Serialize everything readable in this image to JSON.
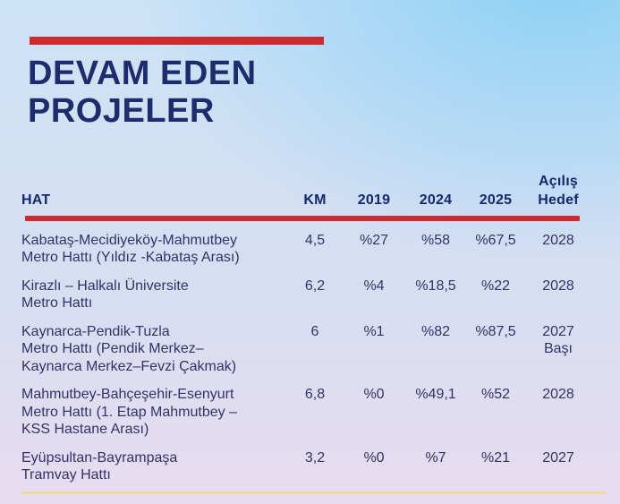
{
  "title": {
    "line1": "DEVAM EDEN",
    "line2": "PROJELER"
  },
  "colors": {
    "accent_red": "#ce2b31",
    "title_navy": "#1d2d6b",
    "header_navy": "#16286d",
    "body_text": "#333268",
    "gold_line": "#edd9a1",
    "bg_top_blue": "#aeddf6",
    "bg_bottom_lavender": "#e8dcf0"
  },
  "table": {
    "headers": {
      "hat": "HAT",
      "km": "KM",
      "y2019": "2019",
      "y2024": "2024",
      "y2025": "2025",
      "acilis_hedef_line1": "Açılış",
      "acilis_hedef_line2": "Hedef"
    },
    "rows": [
      {
        "name_lines": [
          "Kabataş-Mecidiyeköy-Mahmutbey",
          "Metro Hattı (Yıldız -Kabataş Arası)"
        ],
        "km": "4,5",
        "p2019": "%27",
        "p2024": "%58",
        "p2025": "%67,5",
        "hedef_lines": [
          "2028"
        ]
      },
      {
        "name_lines": [
          "Kirazlı – Halkalı Üniversite",
          "Metro Hattı"
        ],
        "km": "6,2",
        "p2019": "%4",
        "p2024": "%18,5",
        "p2025": "%22",
        "hedef_lines": [
          "2028"
        ]
      },
      {
        "name_lines": [
          "Kaynarca-Pendik-Tuzla",
          "Metro Hattı (Pendik Merkez–",
          "Kaynarca Merkez–Fevzi Çakmak)"
        ],
        "km": "6",
        "p2019": "%1",
        "p2024": "%82",
        "p2025": "%87,5",
        "hedef_lines": [
          "2027",
          "Başı"
        ]
      },
      {
        "name_lines": [
          "Mahmutbey-Bahçeşehir-Esenyurt",
          "Metro Hattı (1. Etap Mahmutbey –",
          "KSS Hastane Arası)"
        ],
        "km": "6,8",
        "p2019": "%0",
        "p2024": "%49,1",
        "p2025": "%52",
        "hedef_lines": [
          "2028"
        ]
      },
      {
        "name_lines": [
          "Eyüpsultan-Bayrampaşa",
          "Tramvay Hattı"
        ],
        "km": "3,2",
        "p2019": "%0",
        "p2024": "%7",
        "p2025": "%21",
        "hedef_lines": [
          "2027"
        ]
      }
    ]
  },
  "chart_data": {
    "type": "table",
    "title": "DEVAM EDEN PROJELER",
    "columns": [
      "HAT",
      "KM",
      "2019",
      "2024",
      "2025",
      "Açılış Hedef"
    ],
    "rows": [
      [
        "Kabataş-Mecidiyeköy-Mahmutbey Metro Hattı (Yıldız -Kabataş Arası)",
        "4,5",
        "%27",
        "%58",
        "%67,5",
        "2028"
      ],
      [
        "Kirazlı – Halkalı Üniversite Metro Hattı",
        "6,2",
        "%4",
        "%18,5",
        "%22",
        "2028"
      ],
      [
        "Kaynarca-Pendik-Tuzla Metro Hattı (Pendik Merkez–Kaynarca Merkez–Fevzi Çakmak)",
        "6",
        "%1",
        "%82",
        "%87,5",
        "2027 Başı"
      ],
      [
        "Mahmutbey-Bahçeşehir-Esenyurt Metro Hattı (1. Etap Mahmutbey – KSS Hastane Arası)",
        "6,8",
        "%0",
        "%49,1",
        "%52",
        "2028"
      ],
      [
        "Eyüpsultan-Bayrampaşa Tramvay Hattı",
        "3,2",
        "%0",
        "%7",
        "%21",
        "2027"
      ]
    ]
  }
}
